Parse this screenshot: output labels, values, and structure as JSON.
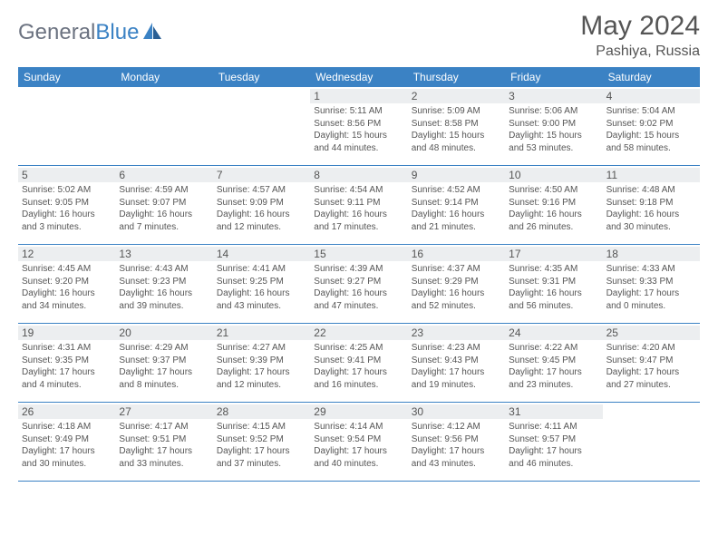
{
  "brand": {
    "part1": "General",
    "part2": "Blue"
  },
  "title": "May 2024",
  "location": "Pashiya, Russia",
  "colors": {
    "header_bg": "#3b82c4",
    "text": "#555555",
    "daynum_bg": "#eceef0",
    "page_bg": "#ffffff"
  },
  "weekdays": [
    "Sunday",
    "Monday",
    "Tuesday",
    "Wednesday",
    "Thursday",
    "Friday",
    "Saturday"
  ],
  "weeks": [
    [
      {
        "n": "",
        "sr": "",
        "ss": "",
        "dl": ""
      },
      {
        "n": "",
        "sr": "",
        "ss": "",
        "dl": ""
      },
      {
        "n": "",
        "sr": "",
        "ss": "",
        "dl": ""
      },
      {
        "n": "1",
        "sr": "Sunrise: 5:11 AM",
        "ss": "Sunset: 8:56 PM",
        "dl": "Daylight: 15 hours and 44 minutes."
      },
      {
        "n": "2",
        "sr": "Sunrise: 5:09 AM",
        "ss": "Sunset: 8:58 PM",
        "dl": "Daylight: 15 hours and 48 minutes."
      },
      {
        "n": "3",
        "sr": "Sunrise: 5:06 AM",
        "ss": "Sunset: 9:00 PM",
        "dl": "Daylight: 15 hours and 53 minutes."
      },
      {
        "n": "4",
        "sr": "Sunrise: 5:04 AM",
        "ss": "Sunset: 9:02 PM",
        "dl": "Daylight: 15 hours and 58 minutes."
      }
    ],
    [
      {
        "n": "5",
        "sr": "Sunrise: 5:02 AM",
        "ss": "Sunset: 9:05 PM",
        "dl": "Daylight: 16 hours and 3 minutes."
      },
      {
        "n": "6",
        "sr": "Sunrise: 4:59 AM",
        "ss": "Sunset: 9:07 PM",
        "dl": "Daylight: 16 hours and 7 minutes."
      },
      {
        "n": "7",
        "sr": "Sunrise: 4:57 AM",
        "ss": "Sunset: 9:09 PM",
        "dl": "Daylight: 16 hours and 12 minutes."
      },
      {
        "n": "8",
        "sr": "Sunrise: 4:54 AM",
        "ss": "Sunset: 9:11 PM",
        "dl": "Daylight: 16 hours and 17 minutes."
      },
      {
        "n": "9",
        "sr": "Sunrise: 4:52 AM",
        "ss": "Sunset: 9:14 PM",
        "dl": "Daylight: 16 hours and 21 minutes."
      },
      {
        "n": "10",
        "sr": "Sunrise: 4:50 AM",
        "ss": "Sunset: 9:16 PM",
        "dl": "Daylight: 16 hours and 26 minutes."
      },
      {
        "n": "11",
        "sr": "Sunrise: 4:48 AM",
        "ss": "Sunset: 9:18 PM",
        "dl": "Daylight: 16 hours and 30 minutes."
      }
    ],
    [
      {
        "n": "12",
        "sr": "Sunrise: 4:45 AM",
        "ss": "Sunset: 9:20 PM",
        "dl": "Daylight: 16 hours and 34 minutes."
      },
      {
        "n": "13",
        "sr": "Sunrise: 4:43 AM",
        "ss": "Sunset: 9:23 PM",
        "dl": "Daylight: 16 hours and 39 minutes."
      },
      {
        "n": "14",
        "sr": "Sunrise: 4:41 AM",
        "ss": "Sunset: 9:25 PM",
        "dl": "Daylight: 16 hours and 43 minutes."
      },
      {
        "n": "15",
        "sr": "Sunrise: 4:39 AM",
        "ss": "Sunset: 9:27 PM",
        "dl": "Daylight: 16 hours and 47 minutes."
      },
      {
        "n": "16",
        "sr": "Sunrise: 4:37 AM",
        "ss": "Sunset: 9:29 PM",
        "dl": "Daylight: 16 hours and 52 minutes."
      },
      {
        "n": "17",
        "sr": "Sunrise: 4:35 AM",
        "ss": "Sunset: 9:31 PM",
        "dl": "Daylight: 16 hours and 56 minutes."
      },
      {
        "n": "18",
        "sr": "Sunrise: 4:33 AM",
        "ss": "Sunset: 9:33 PM",
        "dl": "Daylight: 17 hours and 0 minutes."
      }
    ],
    [
      {
        "n": "19",
        "sr": "Sunrise: 4:31 AM",
        "ss": "Sunset: 9:35 PM",
        "dl": "Daylight: 17 hours and 4 minutes."
      },
      {
        "n": "20",
        "sr": "Sunrise: 4:29 AM",
        "ss": "Sunset: 9:37 PM",
        "dl": "Daylight: 17 hours and 8 minutes."
      },
      {
        "n": "21",
        "sr": "Sunrise: 4:27 AM",
        "ss": "Sunset: 9:39 PM",
        "dl": "Daylight: 17 hours and 12 minutes."
      },
      {
        "n": "22",
        "sr": "Sunrise: 4:25 AM",
        "ss": "Sunset: 9:41 PM",
        "dl": "Daylight: 17 hours and 16 minutes."
      },
      {
        "n": "23",
        "sr": "Sunrise: 4:23 AM",
        "ss": "Sunset: 9:43 PM",
        "dl": "Daylight: 17 hours and 19 minutes."
      },
      {
        "n": "24",
        "sr": "Sunrise: 4:22 AM",
        "ss": "Sunset: 9:45 PM",
        "dl": "Daylight: 17 hours and 23 minutes."
      },
      {
        "n": "25",
        "sr": "Sunrise: 4:20 AM",
        "ss": "Sunset: 9:47 PM",
        "dl": "Daylight: 17 hours and 27 minutes."
      }
    ],
    [
      {
        "n": "26",
        "sr": "Sunrise: 4:18 AM",
        "ss": "Sunset: 9:49 PM",
        "dl": "Daylight: 17 hours and 30 minutes."
      },
      {
        "n": "27",
        "sr": "Sunrise: 4:17 AM",
        "ss": "Sunset: 9:51 PM",
        "dl": "Daylight: 17 hours and 33 minutes."
      },
      {
        "n": "28",
        "sr": "Sunrise: 4:15 AM",
        "ss": "Sunset: 9:52 PM",
        "dl": "Daylight: 17 hours and 37 minutes."
      },
      {
        "n": "29",
        "sr": "Sunrise: 4:14 AM",
        "ss": "Sunset: 9:54 PM",
        "dl": "Daylight: 17 hours and 40 minutes."
      },
      {
        "n": "30",
        "sr": "Sunrise: 4:12 AM",
        "ss": "Sunset: 9:56 PM",
        "dl": "Daylight: 17 hours and 43 minutes."
      },
      {
        "n": "31",
        "sr": "Sunrise: 4:11 AM",
        "ss": "Sunset: 9:57 PM",
        "dl": "Daylight: 17 hours and 46 minutes."
      },
      {
        "n": "",
        "sr": "",
        "ss": "",
        "dl": ""
      }
    ]
  ]
}
